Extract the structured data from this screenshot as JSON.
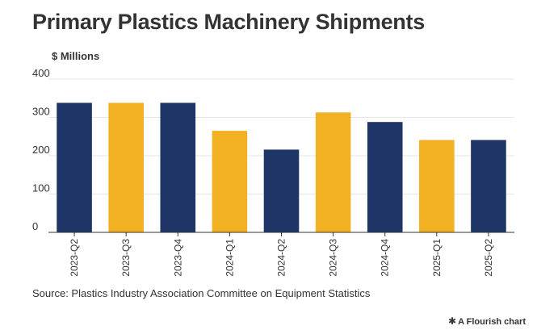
{
  "header": {
    "title": "Primary Plastics Machinery Shipments"
  },
  "footer": {
    "source": "Source: Plastics Industry Association Committee on Equipment Statistics",
    "credit": "A Flourish chart",
    "credit_icon": "flourish-star-icon"
  },
  "colors": {
    "navy": "#1f3467",
    "gold": "#f2b123",
    "grid": "#e6e6e6",
    "text": "#333333"
  },
  "chart_data": {
    "type": "bar",
    "title": "Primary Plastics Machinery Shipments",
    "ylabel": "$ Millions",
    "xlabel": "",
    "ylim": [
      0,
      400
    ],
    "yticks": [
      0,
      100,
      200,
      300,
      400
    ],
    "grid": true,
    "categories": [
      "2023-Q2",
      "2023-Q3",
      "2023-Q4",
      "2024-Q1",
      "2024-Q2",
      "2024-Q3",
      "2024-Q4",
      "2025-Q1",
      "2025-Q2"
    ],
    "values": [
      338,
      338,
      338,
      265,
      216,
      313,
      288,
      241,
      241
    ],
    "bar_colors": [
      "navy",
      "gold",
      "navy",
      "gold",
      "navy",
      "gold",
      "navy",
      "gold",
      "navy"
    ]
  }
}
